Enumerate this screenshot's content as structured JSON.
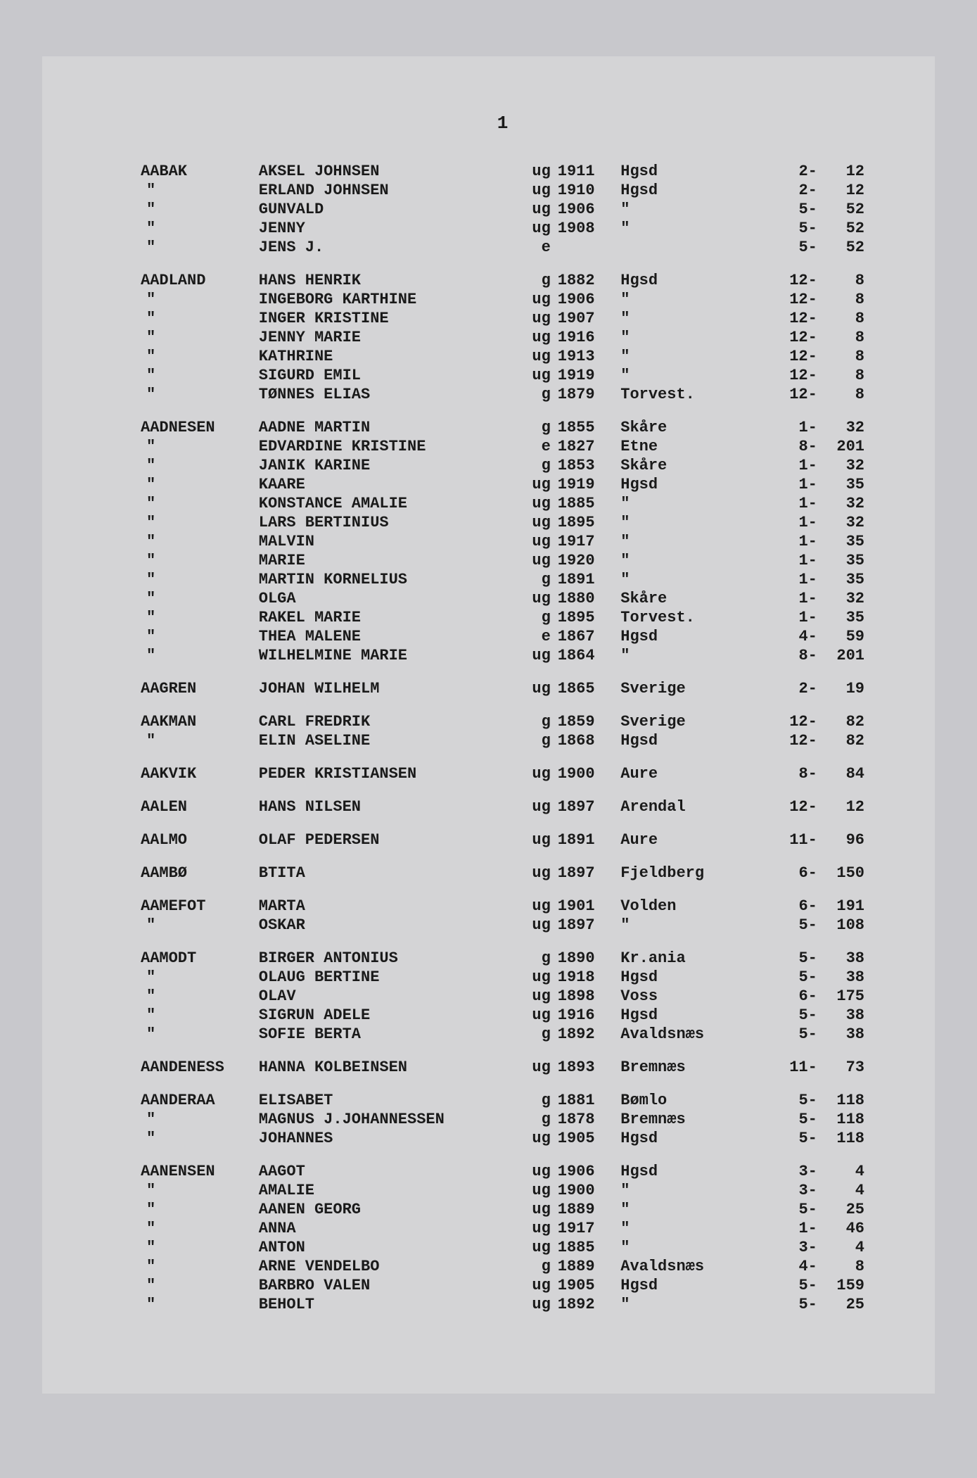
{
  "page_number": "1",
  "groups": [
    {
      "surname": "AABAK",
      "rows": [
        {
          "name": "AKSEL JOHNSEN",
          "status": "ug",
          "year": "1911",
          "place": "Hgsd",
          "ref1": "2-",
          "ref2": "12"
        },
        {
          "name": "ERLAND JOHNSEN",
          "status": "ug",
          "year": "1910",
          "place": "Hgsd",
          "ref1": "2-",
          "ref2": "12"
        },
        {
          "name": "GUNVALD",
          "status": "ug",
          "year": "1906",
          "place": "\"",
          "ref1": "5-",
          "ref2": "52"
        },
        {
          "name": "JENNY",
          "status": "ug",
          "year": "1908",
          "place": "\"",
          "ref1": "5-",
          "ref2": "52"
        },
        {
          "name": "JENS J.",
          "status": "e",
          "year": "",
          "place": "",
          "ref1": "5-",
          "ref2": "52"
        }
      ]
    },
    {
      "surname": "AADLAND",
      "rows": [
        {
          "name": "HANS HENRIK",
          "status": "g",
          "year": "1882",
          "place": "Hgsd",
          "ref1": "12-",
          "ref2": "8"
        },
        {
          "name": "INGEBORG KARTHINE",
          "status": "ug",
          "year": "1906",
          "place": "\"",
          "ref1": "12-",
          "ref2": "8"
        },
        {
          "name": "INGER KRISTINE",
          "status": "ug",
          "year": "1907",
          "place": "\"",
          "ref1": "12-",
          "ref2": "8"
        },
        {
          "name": "JENNY MARIE",
          "status": "ug",
          "year": "1916",
          "place": "\"",
          "ref1": "12-",
          "ref2": "8"
        },
        {
          "name": "KATHRINE",
          "status": "ug",
          "year": "1913",
          "place": "\"",
          "ref1": "12-",
          "ref2": "8"
        },
        {
          "name": "SIGURD EMIL",
          "status": "ug",
          "year": "1919",
          "place": "\"",
          "ref1": "12-",
          "ref2": "8"
        },
        {
          "name": "TØNNES ELIAS",
          "status": "g",
          "year": "1879",
          "place": "Torvest.",
          "ref1": "12-",
          "ref2": "8"
        }
      ]
    },
    {
      "surname": "AADNESEN",
      "rows": [
        {
          "name": "AADNE MARTIN",
          "status": "g",
          "year": "1855",
          "place": "Skåre",
          "ref1": "1-",
          "ref2": "32"
        },
        {
          "name": "EDVARDINE KRISTINE",
          "status": "e",
          "year": "1827",
          "place": "Etne",
          "ref1": "8-",
          "ref2": "201"
        },
        {
          "name": "JANIK KARINE",
          "status": "g",
          "year": "1853",
          "place": "Skåre",
          "ref1": "1-",
          "ref2": "32"
        },
        {
          "name": "KAARE",
          "status": "ug",
          "year": "1919",
          "place": "Hgsd",
          "ref1": "1-",
          "ref2": "35"
        },
        {
          "name": "KONSTANCE AMALIE",
          "status": "ug",
          "year": "1885",
          "place": "\"",
          "ref1": "1-",
          "ref2": "32"
        },
        {
          "name": "LARS BERTINIUS",
          "status": "ug",
          "year": "1895",
          "place": "\"",
          "ref1": "1-",
          "ref2": "32"
        },
        {
          "name": "MALVIN",
          "status": "ug",
          "year": "1917",
          "place": "\"",
          "ref1": "1-",
          "ref2": "35"
        },
        {
          "name": "MARIE",
          "status": "ug",
          "year": "1920",
          "place": "\"",
          "ref1": "1-",
          "ref2": "35"
        },
        {
          "name": "MARTIN KORNELIUS",
          "status": "g",
          "year": "1891",
          "place": "\"",
          "ref1": "1-",
          "ref2": "35"
        },
        {
          "name": "OLGA",
          "status": "ug",
          "year": "1880",
          "place": "Skåre",
          "ref1": "1-",
          "ref2": "32"
        },
        {
          "name": "RAKEL MARIE",
          "status": "g",
          "year": "1895",
          "place": "Torvest.",
          "ref1": "1-",
          "ref2": "35"
        },
        {
          "name": "THEA MALENE",
          "status": "e",
          "year": "1867",
          "place": "Hgsd",
          "ref1": "4-",
          "ref2": "59"
        },
        {
          "name": "WILHELMINE MARIE",
          "status": "ug",
          "year": "1864",
          "place": "\"",
          "ref1": "8-",
          "ref2": "201"
        }
      ]
    },
    {
      "surname": "AAGREN",
      "rows": [
        {
          "name": "JOHAN WILHELM",
          "status": "ug",
          "year": "1865",
          "place": "Sverige",
          "ref1": "2-",
          "ref2": "19"
        }
      ]
    },
    {
      "surname": "AAKMAN",
      "rows": [
        {
          "name": "CARL FREDRIK",
          "status": "g",
          "year": "1859",
          "place": "Sverige",
          "ref1": "12-",
          "ref2": "82"
        },
        {
          "name": "ELIN ASELINE",
          "status": "g",
          "year": "1868",
          "place": "Hgsd",
          "ref1": "12-",
          "ref2": "82"
        }
      ]
    },
    {
      "surname": "AAKVIK",
      "rows": [
        {
          "name": "PEDER KRISTIANSEN",
          "status": "ug",
          "year": "1900",
          "place": "Aure",
          "ref1": "8-",
          "ref2": "84"
        }
      ]
    },
    {
      "surname": "AALEN",
      "rows": [
        {
          "name": "HANS NILSEN",
          "status": "ug",
          "year": "1897",
          "place": "Arendal",
          "ref1": "12-",
          "ref2": "12"
        }
      ]
    },
    {
      "surname": "AALMO",
      "rows": [
        {
          "name": "OLAF PEDERSEN",
          "status": "ug",
          "year": "1891",
          "place": "Aure",
          "ref1": "11-",
          "ref2": "96"
        }
      ]
    },
    {
      "surname": "AAMBØ",
      "rows": [
        {
          "name": "BTITA",
          "status": "ug",
          "year": "1897",
          "place": "Fjeldberg",
          "ref1": "6-",
          "ref2": "150"
        }
      ]
    },
    {
      "surname": "AAMEFOT",
      "rows": [
        {
          "name": "MARTA",
          "status": "ug",
          "year": "1901",
          "place": "Volden",
          "ref1": "6-",
          "ref2": "191"
        },
        {
          "name": "OSKAR",
          "status": "ug",
          "year": "1897",
          "place": "\"",
          "ref1": "5-",
          "ref2": "108"
        }
      ]
    },
    {
      "surname": "AAMODT",
      "rows": [
        {
          "name": "BIRGER ANTONIUS",
          "status": "g",
          "year": "1890",
          "place": "Kr.ania",
          "ref1": "5-",
          "ref2": "38"
        },
        {
          "name": "OLAUG BERTINE",
          "status": "ug",
          "year": "1918",
          "place": "Hgsd",
          "ref1": "5-",
          "ref2": "38"
        },
        {
          "name": "OLAV",
          "status": "ug",
          "year": "1898",
          "place": "Voss",
          "ref1": "6-",
          "ref2": "175"
        },
        {
          "name": "SIGRUN ADELE",
          "status": "ug",
          "year": "1916",
          "place": "Hgsd",
          "ref1": "5-",
          "ref2": "38"
        },
        {
          "name": "SOFIE BERTA",
          "status": "g",
          "year": "1892",
          "place": "Avaldsnæs",
          "ref1": "5-",
          "ref2": "38"
        }
      ]
    },
    {
      "surname": "AANDENESS",
      "rows": [
        {
          "name": "HANNA KOLBEINSEN",
          "status": "ug",
          "year": "1893",
          "place": "Bremnæs",
          "ref1": "11-",
          "ref2": "73"
        }
      ]
    },
    {
      "surname": "AANDERAA",
      "rows": [
        {
          "name": "ELISABET",
          "status": "g",
          "year": "1881",
          "place": "Bømlo",
          "ref1": "5-",
          "ref2": "118"
        },
        {
          "name": "MAGNUS J.JOHANNESSEN",
          "status": "g",
          "year": "1878",
          "place": "Bremnæs",
          "ref1": "5-",
          "ref2": "118"
        },
        {
          "name": "JOHANNES",
          "status": "ug",
          "year": "1905",
          "place": "Hgsd",
          "ref1": "5-",
          "ref2": "118"
        }
      ]
    },
    {
      "surname": "AANENSEN",
      "rows": [
        {
          "name": "AAGOT",
          "status": "ug",
          "year": "1906",
          "place": "Hgsd",
          "ref1": "3-",
          "ref2": "4"
        },
        {
          "name": "AMALIE",
          "status": "ug",
          "year": "1900",
          "place": "\"",
          "ref1": "3-",
          "ref2": "4"
        },
        {
          "name": "AANEN GEORG",
          "status": "ug",
          "year": "1889",
          "place": "\"",
          "ref1": "5-",
          "ref2": "25"
        },
        {
          "name": "ANNA",
          "status": "ug",
          "year": "1917",
          "place": "\"",
          "ref1": "1-",
          "ref2": "46"
        },
        {
          "name": "ANTON",
          "status": "ug",
          "year": "1885",
          "place": "\"",
          "ref1": "3-",
          "ref2": "4"
        },
        {
          "name": "ARNE VENDELBO",
          "status": "g",
          "year": "1889",
          "place": "Avaldsnæs",
          "ref1": "4-",
          "ref2": "8"
        },
        {
          "name": "BARBRO VALEN",
          "status": "ug",
          "year": "1905",
          "place": "Hgsd",
          "ref1": "5-",
          "ref2": "159"
        },
        {
          "name": "BEHOLT",
          "status": "ug",
          "year": "1892",
          "place": "\"",
          "ref1": "5-",
          "ref2": "25"
        }
      ]
    }
  ]
}
